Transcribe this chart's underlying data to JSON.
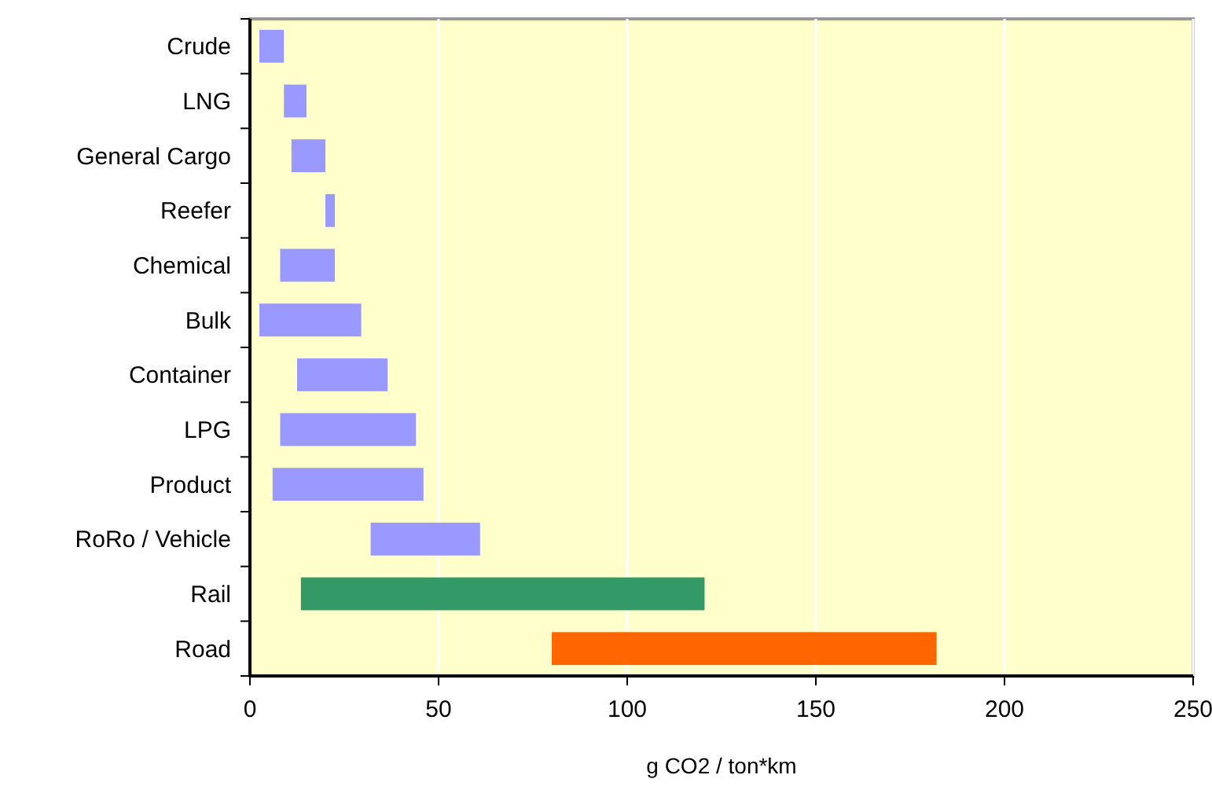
{
  "chart_data": {
    "type": "bar",
    "orientation": "horizontal",
    "xlabel": "g CO2 / ton*km",
    "categories": [
      "Crude",
      "LNG",
      "General Cargo",
      "Reefer",
      "Chemical",
      "Bulk",
      "Container",
      "LPG",
      "Product",
      "RoRo / Vehicle",
      "Rail",
      "Road"
    ],
    "base": [
      2.5,
      9,
      11,
      20,
      8,
      2.5,
      12.5,
      8,
      6,
      32,
      13.5,
      80
    ],
    "values": [
      6.5,
      6,
      9,
      2.5,
      14.5,
      27,
      24,
      36,
      40,
      29,
      107,
      102
    ],
    "colors": [
      "#9999ff",
      "#9999ff",
      "#9999ff",
      "#9999ff",
      "#9999ff",
      "#9999ff",
      "#9999ff",
      "#9999ff",
      "#9999ff",
      "#9999ff",
      "#339966",
      "#ff6600"
    ],
    "xlim": [
      0,
      250
    ],
    "xticks": [
      0,
      50,
      100,
      150,
      200,
      250
    ],
    "grid": "x"
  }
}
